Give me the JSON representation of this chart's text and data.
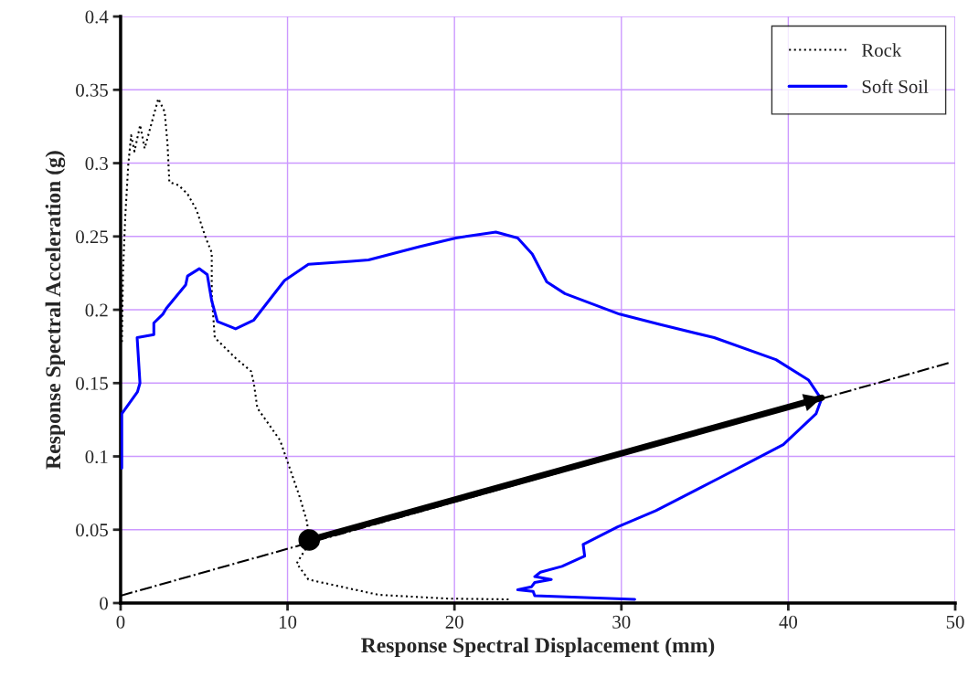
{
  "chart_data": {
    "type": "line",
    "xlabel": "Response Spectral Displacement (mm)",
    "ylabel": "Response Spectral Acceleration (g)",
    "xlim": [
      0,
      50
    ],
    "ylim": [
      0,
      0.4
    ],
    "xticks": [
      0,
      10,
      20,
      30,
      40,
      50
    ],
    "yticks": [
      0,
      0.05,
      0.1,
      0.15,
      0.2,
      0.25,
      0.3,
      0.35,
      0.4
    ],
    "grid": true,
    "legend": "top right",
    "series": [
      {
        "name": "Rock",
        "color": "#000000",
        "line_style": "dotted",
        "x": [
          0.08,
          0.14,
          0.28,
          0.46,
          0.63,
          0.83,
          1.17,
          1.44,
          1.92,
          2.26,
          2.64,
          2.81,
          2.92,
          3.46,
          4.01,
          4.55,
          5.1,
          5.46,
          5.46,
          5.64,
          6.89,
          7.82,
          7.98,
          8.19,
          9.55,
          9.89,
          10.71,
          11.18,
          11.25,
          10.55,
          11.25,
          15.45,
          19.63,
          23.24
        ],
        "values": [
          0.178,
          0.225,
          0.264,
          0.299,
          0.319,
          0.308,
          0.326,
          0.31,
          0.33,
          0.344,
          0.335,
          0.313,
          0.287,
          0.285,
          0.279,
          0.268,
          0.249,
          0.239,
          0.21,
          0.181,
          0.167,
          0.158,
          0.15,
          0.133,
          0.111,
          0.1,
          0.073,
          0.055,
          0.04,
          0.027,
          0.016,
          0.0056,
          0.003,
          0.0025
        ]
      },
      {
        "name": "Soft Soil",
        "color": "#0000ff",
        "line_style": "solid",
        "x": [
          0.07,
          0.07,
          1.01,
          1.16,
          0.99,
          1.99,
          1.99,
          2.53,
          2.74,
          3.9,
          4.01,
          4.71,
          5.19,
          5.46,
          5.8,
          6.89,
          7.98,
          9.82,
          11.25,
          13.81,
          14.85,
          17.9,
          20.08,
          22.48,
          23.79,
          24.66,
          25.53,
          26.62,
          29.89,
          32.29,
          35.56,
          39.26,
          41.22,
          41.98,
          41.66,
          39.7,
          35.99,
          32.07,
          29.78,
          27.71,
          27.8,
          26.44,
          25.15,
          24.81,
          25.8,
          24.81,
          24.61,
          23.79,
          24.71,
          24.81,
          30.8
        ],
        "values": [
          0.092,
          0.129,
          0.144,
          0.15,
          0.181,
          0.183,
          0.191,
          0.197,
          0.201,
          0.217,
          0.223,
          0.228,
          0.224,
          0.206,
          0.192,
          0.187,
          0.193,
          0.22,
          0.231,
          0.233,
          0.234,
          0.243,
          0.249,
          0.253,
          0.249,
          0.238,
          0.219,
          0.211,
          0.197,
          0.19,
          0.181,
          0.166,
          0.152,
          0.139,
          0.129,
          0.108,
          0.086,
          0.063,
          0.052,
          0.04,
          0.032,
          0.025,
          0.021,
          0.018,
          0.016,
          0.014,
          0.011,
          0.009,
          0.008,
          0.005,
          0.0025
        ]
      },
      {
        "color": "#000000",
        "line_style": "dashdot",
        "x": [
          0,
          49.7
        ],
        "values": [
          0.005,
          0.164
        ]
      },
      {
        "color": "#000000",
        "line_style": "solid",
        "marker": "circle",
        "x": [
          11.3,
          42.0
        ],
        "values": [
          0.043,
          0.14
        ]
      }
    ]
  }
}
